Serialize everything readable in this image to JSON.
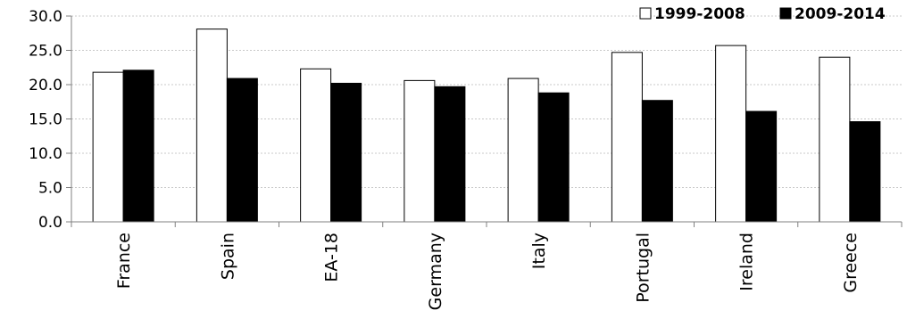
{
  "chart_data": {
    "type": "bar",
    "title": "",
    "xlabel": "",
    "ylabel": "",
    "categories": [
      "France",
      "Spain",
      "EA-18",
      "Germany",
      "Italy",
      "Portugal",
      "Ireland",
      "Greece"
    ],
    "series": [
      {
        "name": "1999-2008",
        "values": [
          21.8,
          28.1,
          22.3,
          20.6,
          20.9,
          24.7,
          25.7,
          24.0
        ],
        "color": "#ffffff"
      },
      {
        "name": "2009-2014",
        "values": [
          22.1,
          20.9,
          20.2,
          19.7,
          18.8,
          17.7,
          16.1,
          14.6
        ],
        "color": "#000000"
      }
    ],
    "yticks": [
      "0.0",
      "5.0",
      "10.0",
      "15.0",
      "20.0",
      "25.0",
      "30.0"
    ],
    "ylim": [
      0,
      30
    ],
    "grid": true,
    "legend_position": "top-right"
  }
}
